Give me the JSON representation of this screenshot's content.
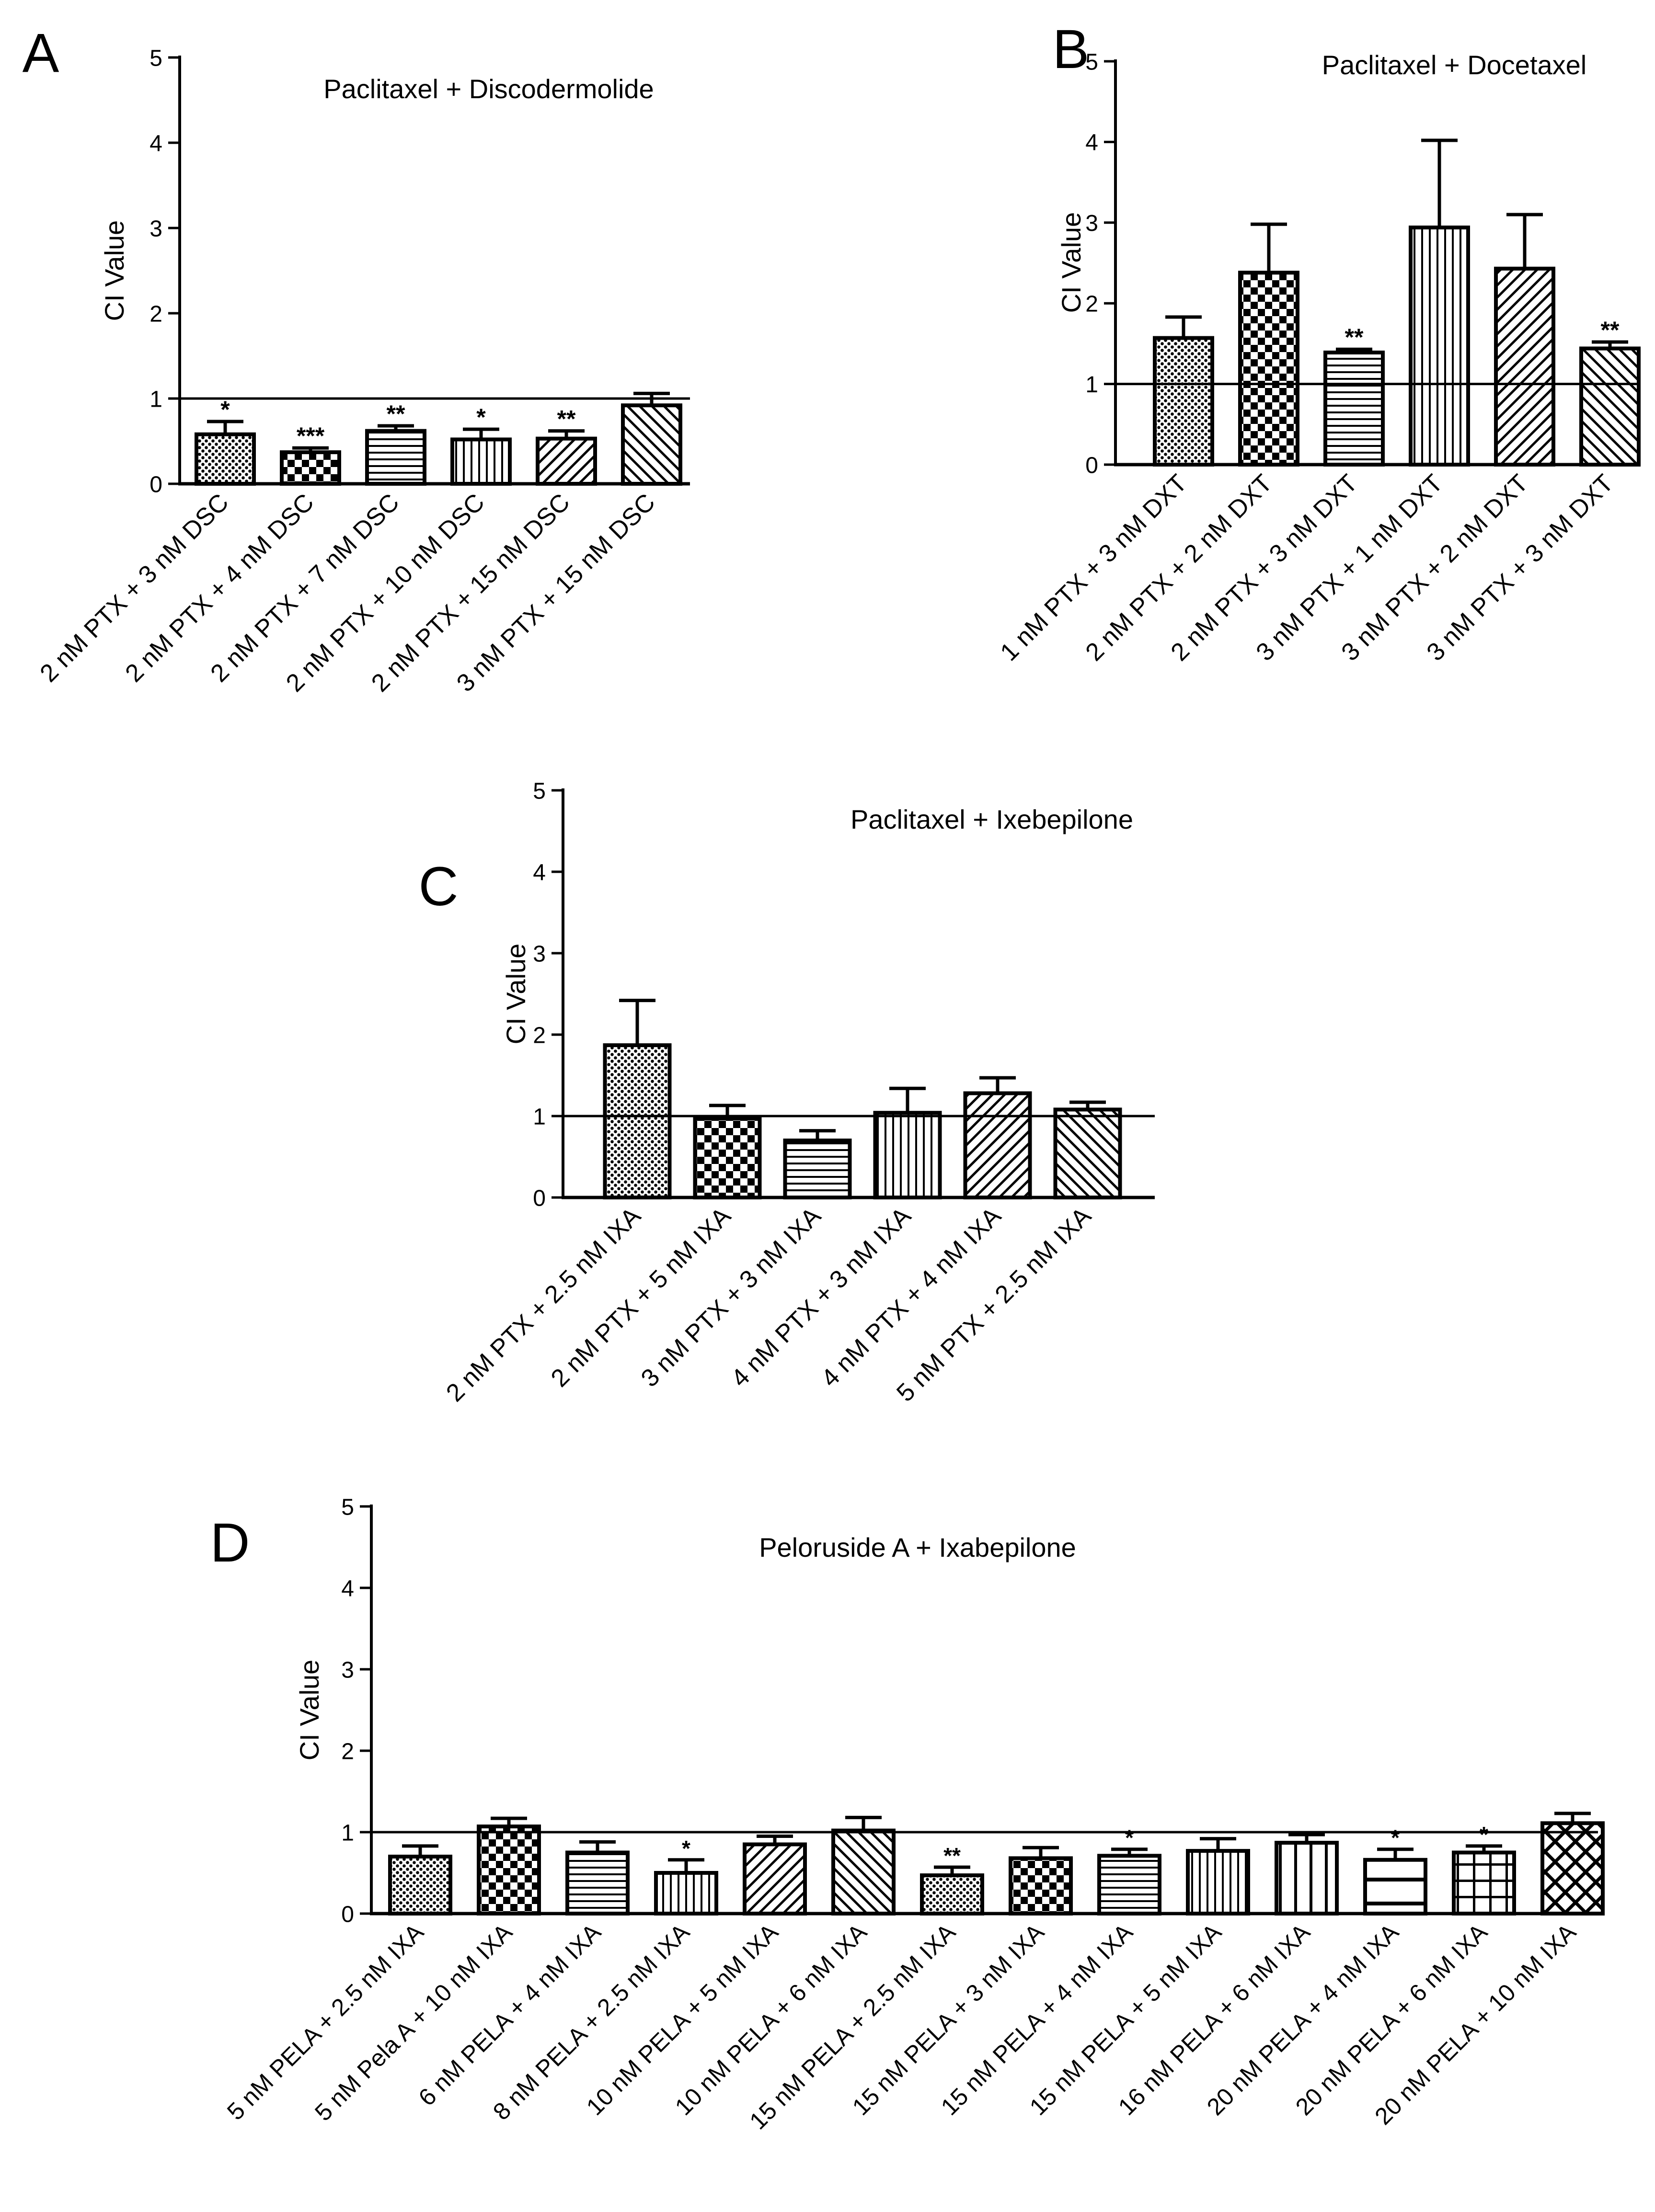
{
  "chart_data": [
    {
      "panel": "A",
      "type": "bar",
      "title": "Paclitaxel + Discodermolide",
      "ylabel": "CI Value",
      "xlabel": "",
      "ylim": [
        0,
        5
      ],
      "yticks": [
        "0",
        "1",
        "2",
        "3",
        "4",
        "5"
      ],
      "reference_line": 1,
      "categories": [
        "2 nM PTX + 3 nM DSC",
        "2 nM PTX + 4 nM DSC",
        "2 nM PTX + 7 nM DSC",
        "2 nM PTX + 10 nM DSC",
        "2 nM PTX + 15 nM DSC",
        "3 nM PTX + 15 nM DSC"
      ],
      "values": [
        0.58,
        0.37,
        0.62,
        0.52,
        0.53,
        0.92
      ],
      "errors": [
        0.15,
        0.05,
        0.06,
        0.12,
        0.09,
        0.14
      ],
      "significance": [
        "*",
        "***",
        "**",
        "*",
        "**",
        ""
      ],
      "patterns": [
        "dots",
        "checker",
        "hlines",
        "vlines",
        "diag",
        "diag2"
      ]
    },
    {
      "panel": "B",
      "type": "bar",
      "title": "Paclitaxel + Docetaxel",
      "ylabel": "CI Value",
      "xlabel": "",
      "ylim": [
        0,
        5
      ],
      "yticks": [
        "0",
        "1",
        "2",
        "3",
        "4",
        "5"
      ],
      "reference_line": 1,
      "categories": [
        "1 nM PTX + 3 nM DXT",
        "2 nM PTX + 2 nM DXT",
        "2 nM PTX + 3 nM DXT",
        "3 nM PTX + 1 nM DXT",
        "3 nM PTX + 2 nM DXT",
        "3 nM PTX + 3 nM DXT"
      ],
      "values": [
        1.57,
        2.38,
        1.39,
        2.94,
        2.43,
        1.44
      ],
      "errors": [
        0.26,
        0.6,
        0.04,
        1.08,
        0.67,
        0.08
      ],
      "significance": [
        "",
        "",
        "**",
        "",
        "",
        "**"
      ],
      "patterns": [
        "dots",
        "checker",
        "hlines",
        "vlines",
        "diag",
        "diag2"
      ]
    },
    {
      "panel": "C",
      "type": "bar",
      "title": "Paclitaxel + Ixebepilone",
      "ylabel": "CI Value",
      "xlabel": "",
      "ylim": [
        0,
        5
      ],
      "yticks": [
        "0",
        "1",
        "2",
        "3",
        "4",
        "5"
      ],
      "reference_line": 1,
      "categories": [
        "2 nM PTX + 2.5 nM IXA",
        "2 nM PTX + 5 nM IXA",
        "3 nM PTX + 3 nM IXA",
        "4 nM PTX + 3 nM IXA",
        "4 nM PTX + 4 nM IXA",
        "5 nM PTX + 2.5 nM IXA"
      ],
      "values": [
        1.87,
        0.97,
        0.7,
        1.04,
        1.28,
        1.08
      ],
      "errors": [
        0.55,
        0.16,
        0.12,
        0.3,
        0.19,
        0.09
      ],
      "significance": [
        "",
        "",
        "",
        "",
        "",
        ""
      ],
      "patterns": [
        "dots",
        "checker",
        "hlines",
        "vlines",
        "diag",
        "diag2"
      ]
    },
    {
      "panel": "D",
      "type": "bar",
      "title": "Peloruside A + Ixabepilone",
      "ylabel": "CI Value",
      "xlabel": "",
      "ylim": [
        0,
        5
      ],
      "yticks": [
        "0",
        "1",
        "2",
        "3",
        "4",
        "5"
      ],
      "reference_line": 1,
      "categories": [
        "5 nM PELA + 2.5 nM IXA",
        "5 nM Pela A + 10 nM IXA",
        "6 nM PELA + 4 nM IXA",
        "8 nM PELA + 2.5 nM IXA",
        "10 nM PELA + 5 nM IXA",
        "10 nM PELA + 6 nM IXA",
        "15 nM PELA + 2.5 nM IXA",
        "15 nM PELA + 3 nM IXA",
        "15 nM PELA + 4 nM IXA",
        "15 nM PELA + 5 nM IXA",
        "16 nM PELA + 6 nM IXA",
        "20 nM PELA + 4 nM IXA",
        "20 nM PELA + 6 nM IXA",
        "20 nM PELA + 10 nM IXA"
      ],
      "values": [
        0.7,
        1.07,
        0.75,
        0.5,
        0.85,
        1.02,
        0.47,
        0.68,
        0.71,
        0.77,
        0.87,
        0.66,
        0.75,
        1.11
      ],
      "errors": [
        0.13,
        0.1,
        0.13,
        0.16,
        0.1,
        0.16,
        0.1,
        0.13,
        0.08,
        0.15,
        0.1,
        0.13,
        0.08,
        0.12
      ],
      "significance": [
        "",
        "",
        "",
        "*",
        "",
        "",
        "**",
        "",
        "*",
        "",
        "",
        "*",
        "*",
        ""
      ],
      "patterns": [
        "dots",
        "checker",
        "hlines",
        "vlines",
        "diag",
        "diag2",
        "dots",
        "checker",
        "hlines",
        "vlines",
        "vbars",
        "hbars",
        "grid",
        "crosshatch"
      ]
    }
  ]
}
